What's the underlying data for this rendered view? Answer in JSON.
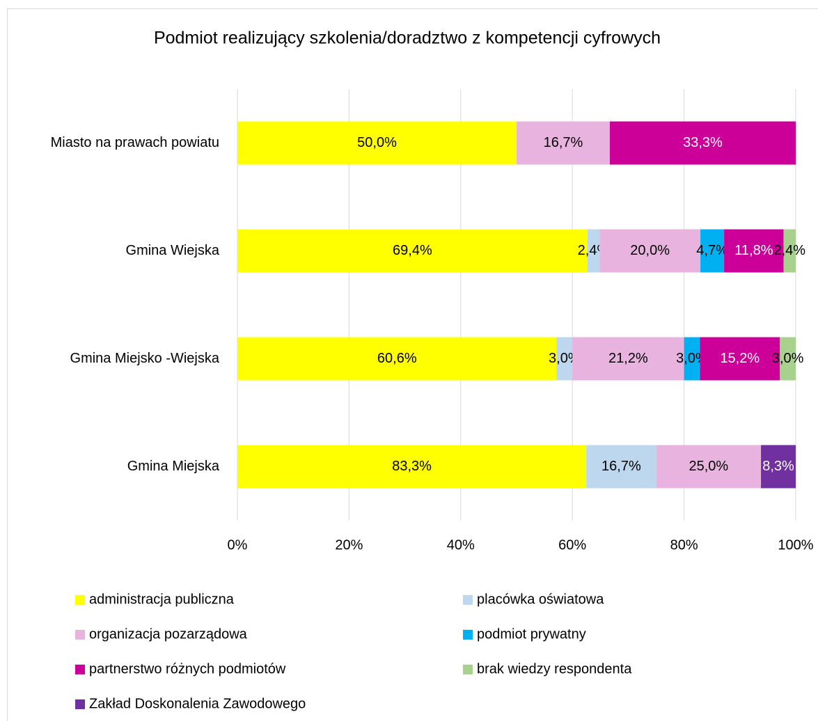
{
  "chart_data": {
    "type": "bar",
    "orientation": "horizontal",
    "stacking": "percent",
    "title": "Podmiot realizujący szkolenia/doradztwo z kompetencji cyfrowych",
    "categories": [
      "Miasto na prawach powiatu",
      "Gmina Wiejska",
      "Gmina Miejsko -Wiejska",
      "Gmina Miejska"
    ],
    "series": [
      {
        "name": "administracja publiczna",
        "color": "#ffff00",
        "label_color": "#000000",
        "values": [
          50.0,
          69.4,
          60.6,
          83.3
        ],
        "value_labels": [
          "50,0%",
          "69,4%",
          "60,6%",
          "83,3%"
        ]
      },
      {
        "name": "placówka oświatowa",
        "color": "#bdd7ee",
        "label_color": "#000000",
        "values": [
          null,
          2.4,
          3.0,
          16.7
        ],
        "value_labels": [
          null,
          "2,4%",
          "3,0%",
          "16,7%"
        ]
      },
      {
        "name": "organizacja pozarządowa",
        "color": "#e8b4df",
        "label_color": "#000000",
        "values": [
          16.7,
          20.0,
          21.2,
          25.0
        ],
        "value_labels": [
          "16,7%",
          "20,0%",
          "21,2%",
          "25,0%"
        ]
      },
      {
        "name": "podmiot prywatny",
        "color": "#00b0f0",
        "label_color": "#000000",
        "values": [
          null,
          4.7,
          3.0,
          null
        ],
        "value_labels": [
          null,
          "4,7%",
          "3,0%",
          null
        ]
      },
      {
        "name": "partnerstwo różnych podmiotów",
        "color": "#cc0099",
        "label_color": "#ffffff",
        "values": [
          33.3,
          11.8,
          15.2,
          null
        ],
        "value_labels": [
          "33,3%",
          "11,8%",
          "15,2%",
          null
        ]
      },
      {
        "name": "brak wiedzy respondenta",
        "color": "#a9d18e",
        "label_color": "#000000",
        "values": [
          null,
          2.4,
          3.0,
          null
        ],
        "value_labels": [
          null,
          "2,4%",
          "3,0%",
          null
        ]
      },
      {
        "name": "Zakład Doskonalenia Zawodowego",
        "color": "#7030a0",
        "label_color": "#ffffff",
        "values": [
          null,
          null,
          null,
          8.3
        ],
        "value_labels": [
          null,
          null,
          null,
          "8,3%"
        ]
      }
    ],
    "xlim": [
      0,
      100
    ],
    "xticks": [
      {
        "value": 0,
        "label": "0%"
      },
      {
        "value": 20,
        "label": "20%"
      },
      {
        "value": 40,
        "label": "40%"
      },
      {
        "value": 60,
        "label": "60%"
      },
      {
        "value": 80,
        "label": "80%"
      },
      {
        "value": 100,
        "label": "100%"
      }
    ],
    "grid": true,
    "legend": "bottom"
  }
}
